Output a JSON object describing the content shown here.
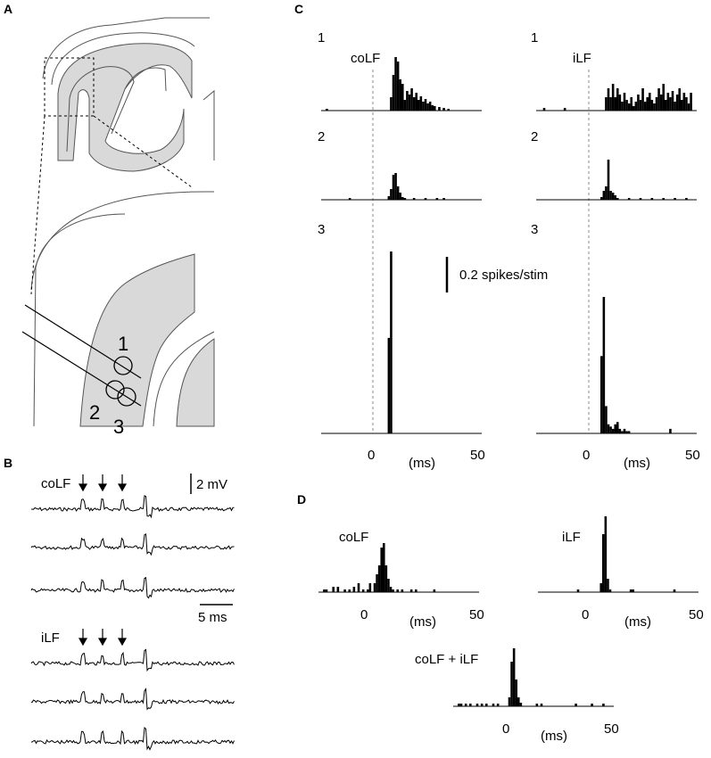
{
  "panels": {
    "A": {
      "letter": "A",
      "sites": [
        "1",
        "2",
        "3"
      ]
    },
    "B": {
      "letter": "B",
      "stim_labels": [
        "coLF",
        "iLF"
      ],
      "scale_v": "2 mV",
      "scale_t": "5 ms"
    },
    "C": {
      "letter": "C",
      "row_labels": [
        "1",
        "2",
        "3"
      ],
      "col_labels": [
        "coLF",
        "iLF"
      ],
      "scale_label": "0.2 spikes/stim",
      "x_ticks": [
        "0",
        "50"
      ],
      "x_unit": "(ms)"
    },
    "D": {
      "letter": "D",
      "labels": [
        "coLF",
        "iLF",
        "coLF + iLF"
      ],
      "x_ticks": [
        "0",
        "50"
      ],
      "x_unit": "(ms)"
    }
  },
  "colors": {
    "tissue": "#d9d9d9",
    "ink": "#000000",
    "outline": "#555555"
  },
  "chart_data": [
    {
      "type": "bar",
      "panel": "C1",
      "stim": "coLF",
      "xlim": [
        -20,
        50
      ],
      "x": [
        -18,
        10,
        11,
        12,
        13,
        14,
        15,
        16,
        17,
        18,
        19,
        20,
        21,
        22,
        23,
        24,
        25,
        26,
        27,
        28,
        29,
        31,
        33,
        35
      ],
      "values": [
        0.02,
        0.15,
        0.4,
        0.6,
        0.55,
        0.35,
        0.3,
        0.12,
        0.22,
        0.18,
        0.25,
        0.15,
        0.2,
        0.12,
        0.16,
        0.1,
        0.13,
        0.08,
        0.1,
        0.06,
        0.05,
        0.04,
        0.03,
        0.02
      ]
    },
    {
      "type": "bar",
      "panel": "C1",
      "stim": "iLF",
      "xlim": [
        -20,
        50
      ],
      "x": [
        -17,
        -8,
        10,
        11,
        12,
        13,
        14,
        15,
        16,
        17,
        18,
        19,
        20,
        21,
        22,
        23,
        24,
        25,
        26,
        27,
        28,
        29,
        30,
        31,
        32,
        33,
        34,
        35,
        36,
        37,
        38,
        39,
        40,
        41,
        42,
        43,
        44,
        45,
        46,
        47
      ],
      "values": [
        0.03,
        0.03,
        0.15,
        0.25,
        0.15,
        0.3,
        0.15,
        0.25,
        0.18,
        0.1,
        0.2,
        0.12,
        0.08,
        0.15,
        0.05,
        0.1,
        0.18,
        0.12,
        0.25,
        0.1,
        0.15,
        0.2,
        0.12,
        0.08,
        0.15,
        0.25,
        0.18,
        0.3,
        0.12,
        0.2,
        0.15,
        0.22,
        0.1,
        0.18,
        0.25,
        0.12,
        0.2,
        0.15,
        0.08,
        0.2
      ]
    },
    {
      "type": "bar",
      "panel": "C2",
      "stim": "coLF",
      "xlim": [
        -20,
        50
      ],
      "x": [
        -8,
        9,
        10,
        11,
        12,
        13,
        14,
        15,
        16,
        20,
        25,
        30,
        33
      ],
      "values": [
        0.02,
        0.04,
        0.12,
        0.28,
        0.3,
        0.15,
        0.08,
        0.03,
        0.02,
        0.02,
        0.02,
        0.02,
        0.02
      ]
    },
    {
      "type": "bar",
      "panel": "C2",
      "stim": "iLF",
      "xlim": [
        -20,
        50
      ],
      "x": [
        8,
        9,
        10,
        11,
        12,
        13,
        14,
        15,
        20,
        25,
        30,
        35,
        40,
        45
      ],
      "values": [
        0.03,
        0.1,
        0.15,
        0.45,
        0.1,
        0.08,
        0.05,
        0.02,
        0.02,
        0.02,
        0.02,
        0.02,
        0.02,
        0.02
      ]
    },
    {
      "type": "bar",
      "panel": "C3",
      "stim": "coLF",
      "xlim": [
        -20,
        50
      ],
      "x": [
        9,
        10
      ],
      "values": [
        0.42,
        0.8
      ]
    },
    {
      "type": "bar",
      "panel": "C3",
      "stim": "iLF",
      "xlim": [
        -20,
        50
      ],
      "x": [
        8,
        9,
        10,
        11,
        12,
        13,
        14,
        15,
        16,
        17,
        18,
        19,
        20,
        38
      ],
      "values": [
        0.34,
        0.6,
        0.12,
        0.04,
        0.03,
        0.02,
        0.04,
        0.05,
        0.02,
        0.01,
        0.02,
        0.01,
        0.01,
        0.02
      ]
    },
    {
      "type": "bar",
      "panel": "D",
      "stim": "coLF",
      "xlim": [
        -20,
        50
      ],
      "x": [
        -18,
        -17,
        -14,
        -12,
        -9,
        -7,
        -5,
        -3,
        -1,
        1,
        2,
        4,
        5,
        6,
        7,
        8,
        9,
        10,
        11,
        12,
        14,
        16,
        20,
        22,
        30
      ],
      "values": [
        0.03,
        0.03,
        0.06,
        0.06,
        0.03,
        0.03,
        0.06,
        0.1,
        0.03,
        0.03,
        0.1,
        0.1,
        0.2,
        0.3,
        0.5,
        0.55,
        0.3,
        0.15,
        0.06,
        0.03,
        0.03,
        0.03,
        0.03,
        0.03,
        0.03
      ]
    },
    {
      "type": "bar",
      "panel": "D",
      "stim": "iLF",
      "xlim": [
        -20,
        50
      ],
      "x": [
        -3,
        7,
        8,
        9,
        10,
        11,
        20,
        21,
        39
      ],
      "values": [
        0.03,
        0.1,
        0.65,
        0.85,
        0.15,
        0.03,
        0.03,
        0.03,
        0.03
      ]
    },
    {
      "type": "bar",
      "panel": "D",
      "stim": "coLF + iLF",
      "xlim": [
        -20,
        50
      ],
      "x": [
        -18,
        -17,
        -15,
        -13,
        -10,
        -8,
        -6,
        -3,
        -1,
        4,
        5,
        6,
        7,
        8,
        9,
        16,
        18,
        33,
        40,
        45
      ],
      "values": [
        0.03,
        0.03,
        0.03,
        0.03,
        0.03,
        0.03,
        0.03,
        0.03,
        0.03,
        0.1,
        0.5,
        0.65,
        0.3,
        0.1,
        0.04,
        0.03,
        0.03,
        0.03,
        0.03,
        0.03
      ]
    }
  ]
}
